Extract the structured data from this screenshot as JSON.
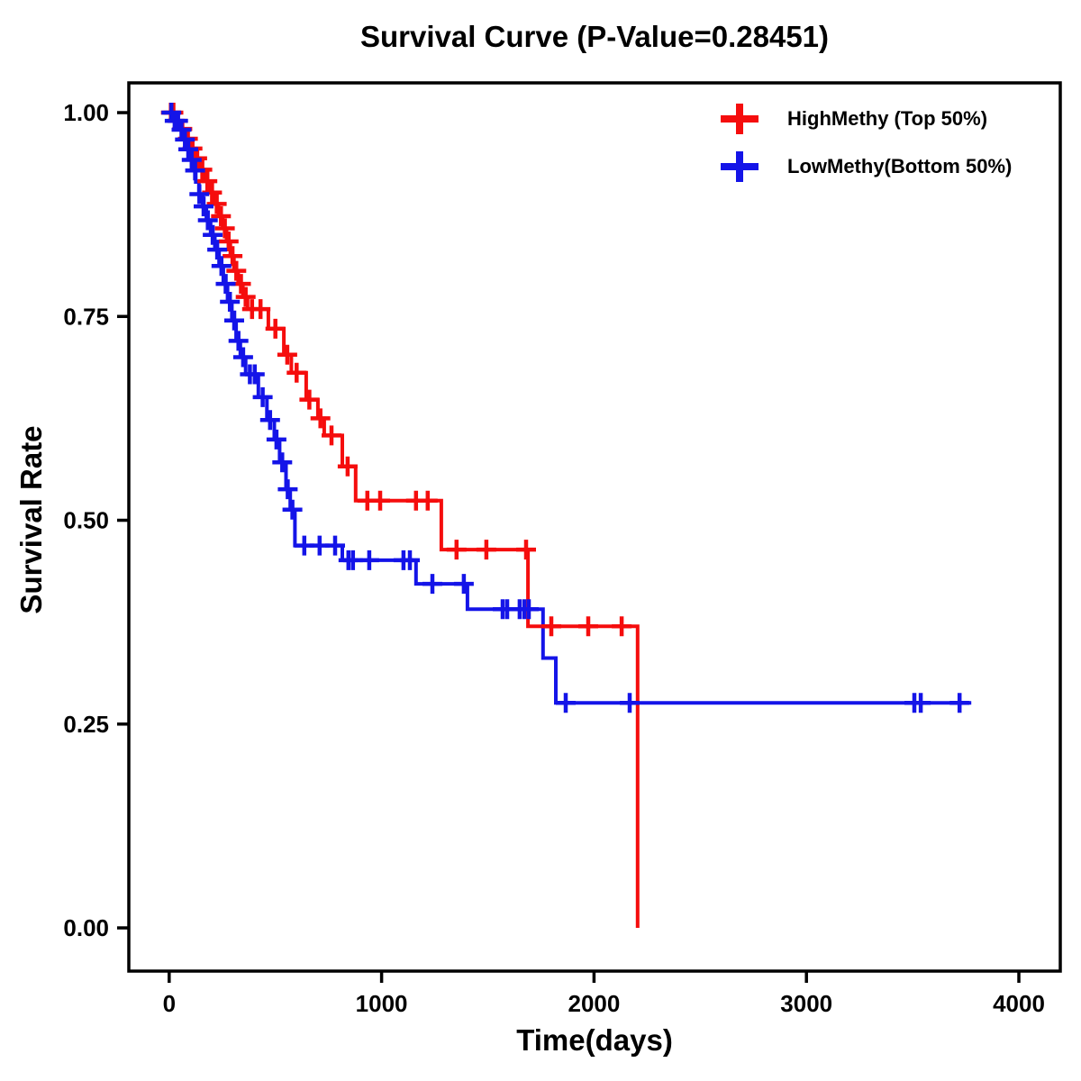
{
  "title": "Survival Curve (P-Value=0.28451)",
  "p_value_text": "0.28451",
  "axes": {
    "x": {
      "label": "Time(days)",
      "tick_labels": [
        "0",
        "1000",
        "2000",
        "3000",
        "4000"
      ]
    },
    "y": {
      "label": "Survival Rate",
      "tick_labels": [
        "0.00",
        "0.25",
        "0.50",
        "0.75",
        "1.00"
      ]
    }
  },
  "legend": {
    "items": [
      {
        "label": "HighMethy (Top 50%)",
        "color": "#f50d0d",
        "symbol": "plus"
      },
      {
        "label": "LowMethy(Bottom 50%)",
        "color": "#1414e8",
        "symbol": "plus"
      }
    ]
  },
  "chart_data": {
    "type": "line",
    "subtype": "kaplan-meier-step",
    "title": "Survival Curve (P-Value=0.28451)",
    "xlabel": "Time(days)",
    "ylabel": "Survival Rate",
    "xlim": [
      -190,
      4195
    ],
    "ylim": [
      -0.053,
      1.0365
    ],
    "xticks": [
      0,
      1000,
      2000,
      3000,
      4000
    ],
    "yticks": [
      0,
      0.25,
      0.5,
      0.75,
      1.0
    ],
    "grid": false,
    "legend_position": "upper right",
    "series": [
      {
        "name": "HighMethy (Top 50%)",
        "color": "#f50d0d",
        "end_time": 2205,
        "steps": [
          [
            0,
            1.0
          ],
          [
            30,
            0.99
          ],
          [
            55,
            0.98
          ],
          [
            80,
            0.968
          ],
          [
            100,
            0.956
          ],
          [
            122,
            0.944
          ],
          [
            145,
            0.93
          ],
          [
            168,
            0.916
          ],
          [
            190,
            0.902
          ],
          [
            212,
            0.888
          ],
          [
            232,
            0.873
          ],
          [
            252,
            0.858
          ],
          [
            270,
            0.842
          ],
          [
            288,
            0.824
          ],
          [
            305,
            0.806
          ],
          [
            325,
            0.79
          ],
          [
            347,
            0.774
          ],
          [
            369,
            0.759
          ],
          [
            467,
            0.735
          ],
          [
            540,
            0.703
          ],
          [
            575,
            0.681
          ],
          [
            645,
            0.648
          ],
          [
            700,
            0.625
          ],
          [
            730,
            0.604
          ],
          [
            815,
            0.566
          ],
          [
            878,
            0.524
          ],
          [
            1281,
            0.464
          ],
          [
            1689,
            0.37
          ],
          [
            2205,
            0.0
          ]
        ],
        "censor_times": [
          8,
          20,
          40,
          62,
          88,
          110,
          132,
          156,
          180,
          202,
          224,
          244,
          262,
          280,
          298,
          316,
          338,
          360,
          390,
          430,
          500,
          556,
          600,
          660,
          712,
          764,
          840,
          933,
          993,
          1162,
          1217,
          1353,
          1493,
          1680,
          1799,
          1973,
          2130
        ]
      },
      {
        "name": "LowMethy(Bottom 50%)",
        "color": "#1414e8",
        "end_time": 3776,
        "steps": [
          [
            0,
            1.0
          ],
          [
            25,
            0.99
          ],
          [
            45,
            0.979
          ],
          [
            62,
            0.967
          ],
          [
            78,
            0.955
          ],
          [
            95,
            0.942
          ],
          [
            110,
            0.929
          ],
          [
            125,
            0.915
          ],
          [
            140,
            0.9
          ],
          [
            158,
            0.885
          ],
          [
            175,
            0.868
          ],
          [
            195,
            0.85
          ],
          [
            215,
            0.832
          ],
          [
            235,
            0.812
          ],
          [
            255,
            0.79
          ],
          [
            275,
            0.768
          ],
          [
            295,
            0.745
          ],
          [
            315,
            0.72
          ],
          [
            335,
            0.7
          ],
          [
            360,
            0.679
          ],
          [
            420,
            0.651
          ],
          [
            460,
            0.623
          ],
          [
            495,
            0.599
          ],
          [
            520,
            0.571
          ],
          [
            550,
            0.538
          ],
          [
            570,
            0.513
          ],
          [
            592,
            0.469
          ],
          [
            815,
            0.451
          ],
          [
            1162,
            0.422
          ],
          [
            1404,
            0.391
          ],
          [
            1760,
            0.331
          ],
          [
            1820,
            0.276
          ]
        ],
        "censor_times": [
          10,
          26,
          42,
          58,
          74,
          90,
          106,
          122,
          142,
          162,
          182,
          205,
          226,
          246,
          266,
          286,
          306,
          326,
          348,
          380,
          403,
          440,
          475,
          505,
          532,
          558,
          580,
          636,
          708,
          781,
          844,
          865,
          942,
          1103,
          1133,
          1239,
          1387,
          1570,
          1591,
          1650,
          1672,
          1693,
          1867,
          2168,
          3508,
          3538,
          3721
        ]
      }
    ]
  },
  "style": {
    "spine_color": "#000000",
    "curve_width": 4,
    "censor_halfsize": 11,
    "censor_stroke": 4.5
  }
}
